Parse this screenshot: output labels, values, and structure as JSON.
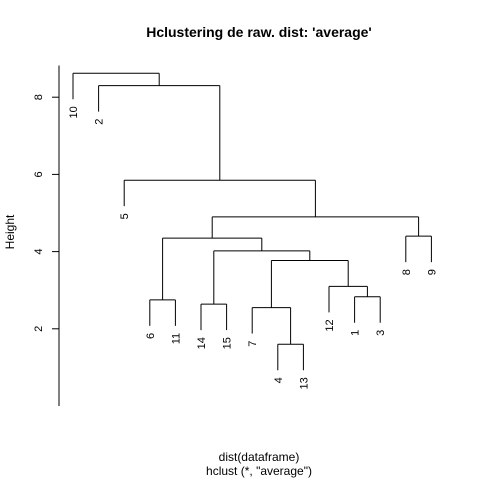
{
  "chart_data": {
    "type": "dendrogram",
    "title": "Hclustering de raw. dist: 'average'",
    "xlabel": "dist(dataframe)",
    "sub": "hclust (*, \"average\")",
    "ylabel": "Height",
    "ylim": [
      0,
      9
    ],
    "yticks": [
      2,
      4,
      6,
      8
    ],
    "grid": false,
    "leaf_order": [
      "10",
      "2",
      "5",
      "6",
      "11",
      "14",
      "15",
      "7",
      "4",
      "13",
      "12",
      "1",
      "3",
      "8",
      "9"
    ],
    "merges": [
      {
        "left": "4",
        "right": "13",
        "height": 1.6
      },
      {
        "left": "7",
        "right": "4+13",
        "height": 2.55
      },
      {
        "left": "1",
        "right": "3",
        "height": 2.83
      },
      {
        "left": "12",
        "right": "1+3",
        "height": 3.1
      },
      {
        "left": "7+4+13",
        "right": "12+1+3",
        "height": 3.77
      },
      {
        "left": "14",
        "right": "15",
        "height": 2.64
      },
      {
        "left": "14+15",
        "right": "7+4+13+12+1+3",
        "height": 4.02
      },
      {
        "left": "6",
        "right": "11",
        "height": 2.75
      },
      {
        "left": "6+11",
        "right": "14+15+7+4+13+12+1+3",
        "height": 4.35
      },
      {
        "left": "8",
        "right": "9",
        "height": 4.4
      },
      {
        "left": "6…3",
        "right": "8+9",
        "height": 4.9
      },
      {
        "left": "5",
        "right": "6…9",
        "height": 5.85
      },
      {
        "left": "2",
        "right": "5…9",
        "height": 8.3
      },
      {
        "left": "10",
        "right": "2…9",
        "height": 8.62
      }
    ]
  }
}
